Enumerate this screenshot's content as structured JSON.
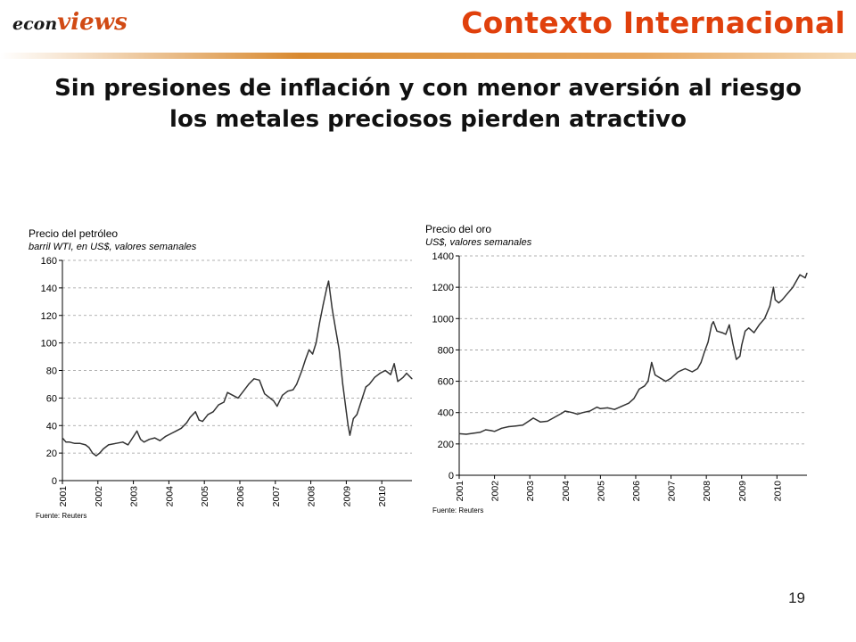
{
  "header": {
    "logo_part1": "econ",
    "logo_part2": "views",
    "title": "Contexto Internacional"
  },
  "headline": {
    "line1": "Sin presiones de inflación y con menor aversión al riesgo",
    "line2": "los metales preciosos pierden atractivo"
  },
  "page_number": "19",
  "colors": {
    "title": "#e0400c",
    "series": "#333333",
    "grid": "#999999"
  },
  "chart_data": [
    {
      "type": "line",
      "title": "Precio del petróleo",
      "subtitle": "barril WTI, en US$, valores semanales",
      "source": "Fuente: Reuters",
      "grid": "horizontal dashed",
      "ylim": [
        0,
        160
      ],
      "yticks": [
        "0",
        "20",
        "40",
        "60",
        "80",
        "100",
        "120",
        "140",
        "160"
      ],
      "xlim": [
        2001,
        2010.85
      ],
      "xticks": [
        "2001",
        "2002",
        "2003",
        "2004",
        "2005",
        "2006",
        "2007",
        "2008",
        "2009",
        "2010"
      ],
      "x": [
        2001.0,
        2001.1,
        2001.2,
        2001.35,
        2001.5,
        2001.65,
        2001.75,
        2001.85,
        2001.95,
        2002.05,
        2002.15,
        2002.3,
        2002.5,
        2002.7,
        2002.85,
        2003.0,
        2003.1,
        2003.2,
        2003.3,
        2003.45,
        2003.6,
        2003.75,
        2003.9,
        2004.05,
        2004.2,
        2004.35,
        2004.5,
        2004.6,
        2004.75,
        2004.85,
        2004.95,
        2005.1,
        2005.25,
        2005.4,
        2005.55,
        2005.65,
        2005.8,
        2005.95,
        2006.1,
        2006.25,
        2006.4,
        2006.55,
        2006.7,
        2006.8,
        2006.95,
        2007.05,
        2007.2,
        2007.35,
        2007.5,
        2007.6,
        2007.75,
        2007.85,
        2007.95,
        2008.05,
        2008.15,
        2008.25,
        2008.35,
        2008.45,
        2008.5,
        2008.6,
        2008.7,
        2008.8,
        2008.9,
        2009.0,
        2009.05,
        2009.1,
        2009.2,
        2009.3,
        2009.45,
        2009.55,
        2009.65,
        2009.8,
        2009.95,
        2010.1,
        2010.25,
        2010.35,
        2010.45,
        2010.55,
        2010.6,
        2010.7,
        2010.85
      ],
      "y": [
        31,
        28,
        28,
        27,
        27,
        26,
        24,
        20,
        18,
        20,
        23,
        26,
        27,
        28,
        26,
        32,
        36,
        30,
        28,
        30,
        31,
        29,
        32,
        34,
        36,
        38,
        42,
        46,
        50,
        44,
        43,
        48,
        50,
        55,
        57,
        64,
        62,
        60,
        65,
        70,
        74,
        73,
        63,
        61,
        58,
        54,
        62,
        65,
        66,
        70,
        80,
        88,
        95,
        92,
        100,
        115,
        128,
        140,
        145,
        125,
        110,
        95,
        70,
        50,
        40,
        33,
        45,
        48,
        60,
        68,
        70,
        75,
        78,
        80,
        77,
        85,
        72,
        74,
        75,
        78,
        74
      ]
    },
    {
      "type": "line",
      "title": "Precio del oro",
      "subtitle": "US$, valores semanales",
      "source": "Fuente: Reuters",
      "grid": "horizontal dashed",
      "ylim": [
        0,
        1400
      ],
      "yticks": [
        "0",
        "200",
        "400",
        "600",
        "800",
        "1000",
        "1200",
        "1400"
      ],
      "xlim": [
        2001,
        2010.85
      ],
      "xticks": [
        "2001",
        "2002",
        "2003",
        "2004",
        "2005",
        "2006",
        "2007",
        "2008",
        "2009",
        "2010"
      ],
      "x": [
        2001.0,
        2001.2,
        2001.4,
        2001.6,
        2001.75,
        2001.9,
        2002.0,
        2002.2,
        2002.4,
        2002.6,
        2002.8,
        2003.0,
        2003.1,
        2003.3,
        2003.5,
        2003.7,
        2003.9,
        2004.0,
        2004.2,
        2004.35,
        2004.5,
        2004.7,
        2004.9,
        2005.0,
        2005.2,
        2005.4,
        2005.6,
        2005.8,
        2005.95,
        2006.1,
        2006.25,
        2006.35,
        2006.45,
        2006.55,
        2006.7,
        2006.85,
        2007.0,
        2007.2,
        2007.4,
        2007.6,
        2007.75,
        2007.85,
        2007.95,
        2008.05,
        2008.15,
        2008.2,
        2008.3,
        2008.45,
        2008.55,
        2008.65,
        2008.75,
        2008.85,
        2008.95,
        2009.0,
        2009.1,
        2009.2,
        2009.35,
        2009.5,
        2009.65,
        2009.8,
        2009.9,
        2009.95,
        2010.05,
        2010.15,
        2010.3,
        2010.45,
        2010.55,
        2010.65,
        2010.8,
        2010.85
      ],
      "y": [
        265,
        262,
        268,
        275,
        290,
        285,
        280,
        300,
        310,
        315,
        320,
        350,
        365,
        340,
        345,
        370,
        395,
        410,
        400,
        390,
        400,
        410,
        435,
        425,
        430,
        420,
        440,
        460,
        490,
        550,
        570,
        600,
        720,
        640,
        620,
        600,
        620,
        660,
        680,
        660,
        680,
        720,
        790,
        850,
        960,
        980,
        920,
        910,
        900,
        960,
        840,
        740,
        760,
        830,
        920,
        940,
        910,
        960,
        1000,
        1080,
        1200,
        1120,
        1100,
        1120,
        1160,
        1200,
        1240,
        1280,
        1260,
        1290
      ]
    }
  ]
}
